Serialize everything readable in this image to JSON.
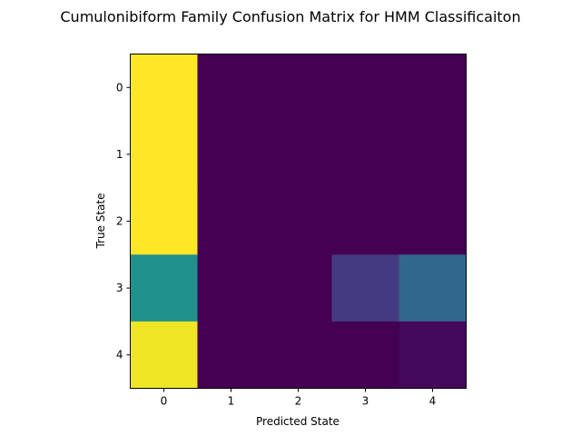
{
  "chart_data": {
    "type": "heatmap",
    "title": "Cumulonibiform Family Confusion Matrix for HMM Classificaiton",
    "xlabel": "Predicted State",
    "ylabel": "True State",
    "x_categories": [
      "0",
      "1",
      "2",
      "3",
      "4"
    ],
    "y_categories": [
      "0",
      "1",
      "2",
      "3",
      "4"
    ],
    "colormap": "viridis",
    "value_range": [
      0,
      1
    ],
    "values": [
      [
        1.0,
        0.0,
        0.0,
        0.0,
        0.0
      ],
      [
        1.0,
        0.0,
        0.0,
        0.0,
        0.0
      ],
      [
        1.0,
        0.0,
        0.0,
        0.0,
        0.0
      ],
      [
        0.5,
        0.0,
        0.0,
        0.17,
        0.33
      ],
      [
        0.98,
        0.0,
        0.0,
        0.0,
        0.02
      ]
    ],
    "grid": false,
    "legend": "none"
  }
}
